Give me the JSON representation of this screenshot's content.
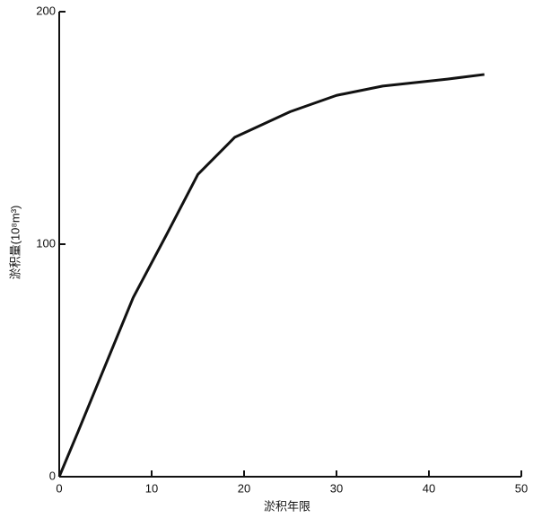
{
  "chart_data": {
    "type": "line",
    "x_label": "淤积年限",
    "y_label": "淤积量(10⁸m³)",
    "x": [
      0,
      2,
      5,
      8,
      11.6,
      15,
      19,
      25,
      30,
      35,
      42,
      46
    ],
    "series": [
      {
        "color": "#111111",
        "values": [
          0,
          19,
          48,
          77,
          104,
          130,
          146,
          157,
          164,
          168,
          171,
          173
        ]
      }
    ],
    "xlim": [
      0,
      50
    ],
    "xticks": [
      0,
      10,
      20,
      30,
      40,
      50
    ],
    "ylim": [
      0,
      200
    ],
    "yticks": [
      0,
      100,
      200
    ],
    "grid": false
  }
}
